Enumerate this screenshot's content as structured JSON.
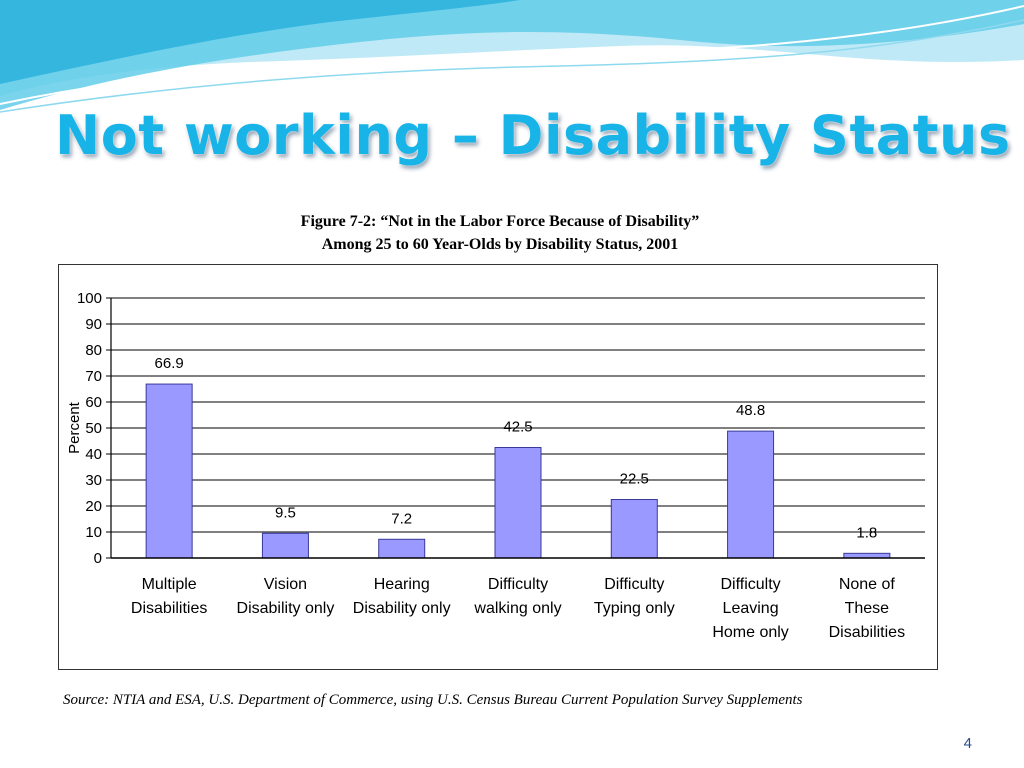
{
  "slide": {
    "title": "Not working – Disability Status",
    "page_number": "4",
    "source": "Source: NTIA and ESA, U.S. Department of Commerce, using U.S. Census Bureau Current Population Survey Supplements"
  },
  "colors": {
    "title": "#18b4e8",
    "bar_fill": "#9999ff",
    "bar_stroke": "#3a3a9a",
    "wave_dark": "#3fc0e4",
    "wave_light": "#bfe9f6"
  },
  "chart_data": {
    "type": "bar",
    "title": "Figure 7-2: “Not in the Labor Force Because of Disability”",
    "subtitle": "Among 25 to 60 Year-Olds by Disability Status, 2001",
    "ylabel": "Percent",
    "xlabel": "",
    "ylim": [
      0,
      100
    ],
    "yticks": [
      0,
      10,
      20,
      30,
      40,
      50,
      60,
      70,
      80,
      90,
      100
    ],
    "grid": true,
    "legend": "none",
    "categories": [
      [
        "Multiple",
        "Disabilities"
      ],
      [
        "Vision",
        "Disability only"
      ],
      [
        "Hearing",
        "Disability only"
      ],
      [
        "Difficulty",
        "walking only"
      ],
      [
        "Difficulty",
        "Typing only"
      ],
      [
        "Difficulty",
        "Leaving",
        "Home only"
      ],
      [
        "None of",
        "These",
        "Disabilities"
      ]
    ],
    "values": [
      66.9,
      9.5,
      7.2,
      42.5,
      22.5,
      48.8,
      1.8
    ],
    "data_labels": [
      "66.9",
      "9.5",
      "7.2",
      "42.5",
      "22.5",
      "48.8",
      "1.8"
    ]
  }
}
